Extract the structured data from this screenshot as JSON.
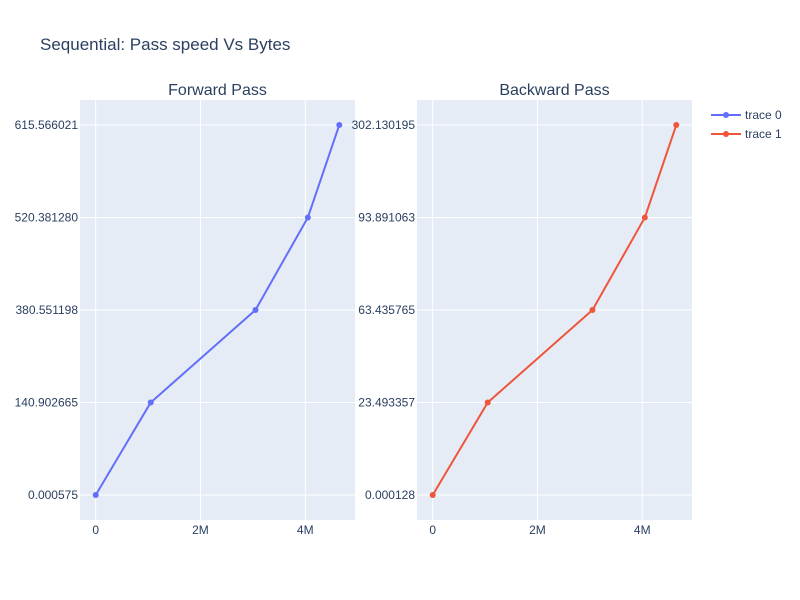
{
  "chart_data": {
    "title": "Sequential: Pass speed Vs Bytes",
    "type": "line",
    "x_ticks": [
      {
        "value": 0,
        "label": "0"
      },
      {
        "value": 2000000,
        "label": "2M"
      },
      {
        "value": 4000000,
        "label": "4M"
      }
    ],
    "x_range": [
      -300000,
      4950000
    ],
    "legend": {
      "placement": "top-right",
      "items": [
        {
          "label": "trace 0",
          "color": "#636efa"
        },
        {
          "label": "trace 1",
          "color": "#EF553B"
        }
      ]
    },
    "subplots": [
      {
        "title": "Forward Pass",
        "scale": "categorical",
        "series": {
          "name": "trace 0",
          "color": "#636efa",
          "x": [
            0,
            1050000,
            3050000,
            4050000,
            4650000
          ],
          "y": [
            "0.000575",
            "140.902665",
            "380.551198",
            "520.381280",
            "615.566021"
          ]
        }
      },
      {
        "title": "Backward Pass",
        "scale": "categorical",
        "series": {
          "name": "trace 1",
          "color": "#EF553B",
          "x": [
            0,
            1050000,
            3050000,
            4050000,
            4650000
          ],
          "y": [
            "0.000128",
            "23.493357",
            "63.435765",
            "93.891063",
            "302.130195"
          ]
        }
      }
    ]
  }
}
